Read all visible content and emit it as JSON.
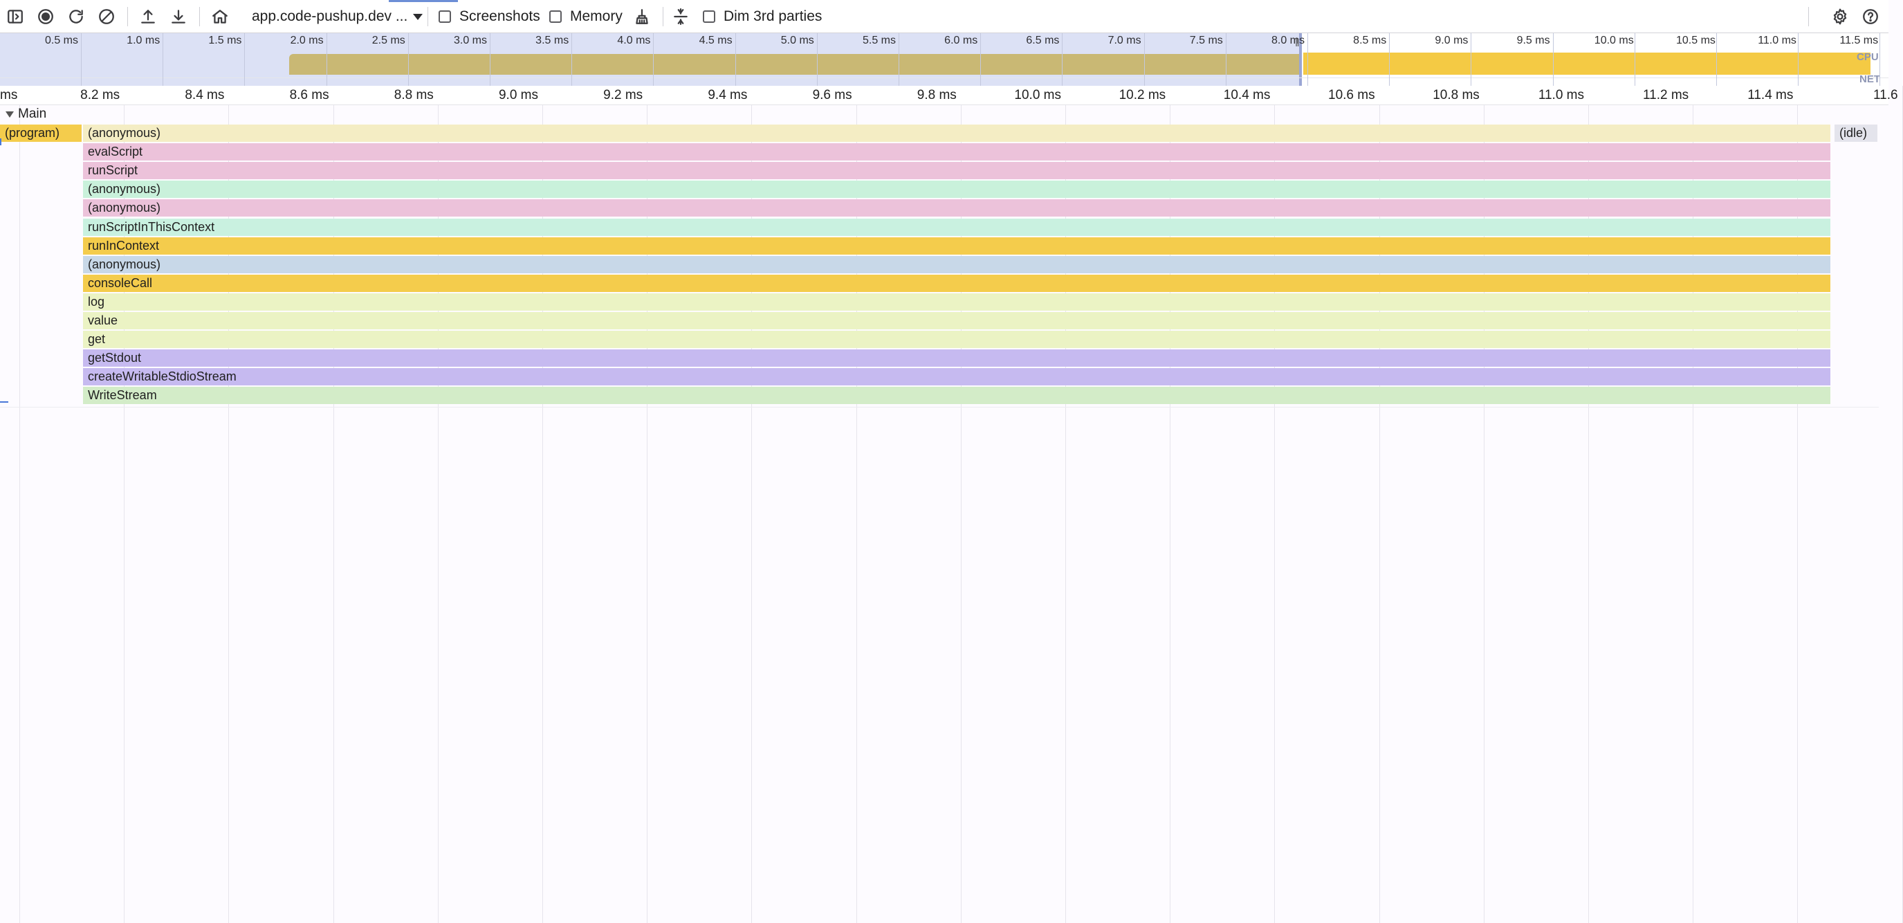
{
  "toolbar": {
    "recording_select": "app.code-pushup.dev ...",
    "screenshots_label": "Screenshots",
    "memory_label": "Memory",
    "dim_third_parties_label": "Dim 3rd parties"
  },
  "overview": {
    "ticks": [
      "0.5 ms",
      "1.0 ms",
      "1.5 ms",
      "2.0 ms",
      "2.5 ms",
      "3.0 ms",
      "3.5 ms",
      "4.0 ms",
      "4.5 ms",
      "5.0 ms",
      "5.5 ms",
      "6.0 ms",
      "6.5 ms",
      "7.0 ms",
      "7.5 ms",
      "8.0 ms",
      "8.5 ms",
      "9.0 ms",
      "9.5 ms",
      "10.0 ms",
      "10.5 ms",
      "11.0 ms",
      "11.5 ms"
    ],
    "cpu_label": "CPU",
    "net_label": "NET"
  },
  "ruler": {
    "ticks": [
      "ms",
      "8.2 ms",
      "8.4 ms",
      "8.6 ms",
      "8.8 ms",
      "9.0 ms",
      "9.2 ms",
      "9.4 ms",
      "9.6 ms",
      "9.8 ms",
      "10.0 ms",
      "10.2 ms",
      "10.4 ms",
      "10.6 ms",
      "10.8 ms",
      "11.0 ms",
      "11.2 ms",
      "11.4 ms",
      "11.6"
    ]
  },
  "track": {
    "name": "Main"
  },
  "flame": {
    "program_label": "(program)",
    "idle_label": "(idle)",
    "frames": [
      {
        "name": "(anonymous)",
        "color": "#f4edc4"
      },
      {
        "name": "evalScript",
        "color": "#ecc2da"
      },
      {
        "name": "runScript",
        "color": "#ecc2da"
      },
      {
        "name": "(anonymous)",
        "color": "#c9f1db"
      },
      {
        "name": "(anonymous)",
        "color": "#ecc2da"
      },
      {
        "name": "runScriptInThisContext",
        "color": "#c9f1e0"
      },
      {
        "name": "runInContext",
        "color": "#f4cc4c"
      },
      {
        "name": "(anonymous)",
        "color": "#c8d8e8"
      },
      {
        "name": "consoleCall",
        "color": "#f4cc4c"
      },
      {
        "name": "log",
        "color": "#ebf3c4"
      },
      {
        "name": "value",
        "color": "#ebf3c4"
      },
      {
        "name": "get",
        "color": "#ebf3c4"
      },
      {
        "name": "getStdout",
        "color": "#c6baf0"
      },
      {
        "name": "createWritableStdioStream",
        "color": "#c6baf0"
      },
      {
        "name": "WriteStream",
        "color": "#d3ecc8"
      }
    ],
    "program_color": "#f4cc4c",
    "idle_color": "#e4e4ec"
  }
}
